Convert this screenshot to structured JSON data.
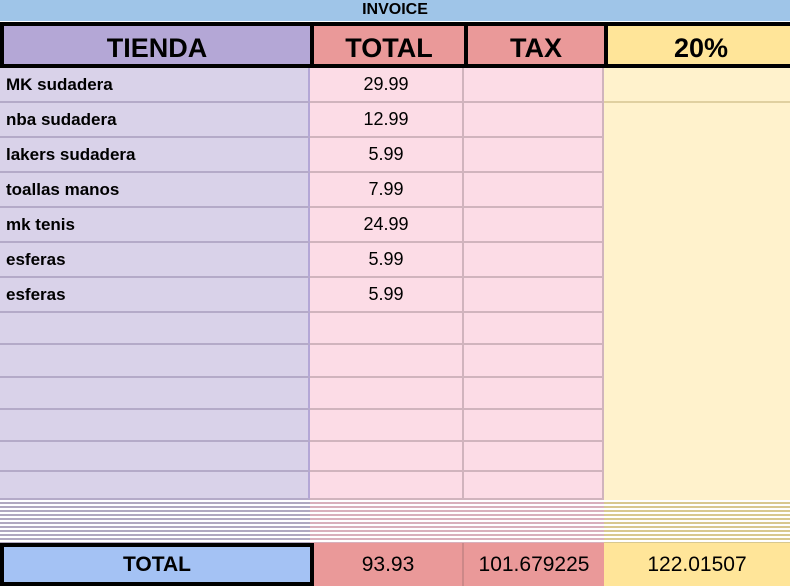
{
  "title": "INVOICE",
  "headers": [
    "TIENDA",
    "TOTAL",
    "TAX",
    "20%"
  ],
  "rows": [
    {
      "item": "MK sudadera",
      "total": "29.99"
    },
    {
      "item": "nba sudadera",
      "total": "12.99"
    },
    {
      "item": "lakers sudadera",
      "total": "5.99"
    },
    {
      "item": "toallas manos",
      "total": "7.99"
    },
    {
      "item": "mk tenis",
      "total": "24.99"
    },
    {
      "item": "esferas",
      "total": "5.99"
    },
    {
      "item": "esferas",
      "total": "5.99"
    },
    {
      "item": "",
      "total": ""
    },
    {
      "item": "",
      "total": ""
    },
    {
      "item": "",
      "total": ""
    },
    {
      "item": "",
      "total": ""
    },
    {
      "item": "",
      "total": ""
    },
    {
      "item": "",
      "total": ""
    }
  ],
  "totals": {
    "label": "TOTAL",
    "total": "93.93",
    "tax": "101.679225",
    "pct": "122.01507"
  },
  "colors": {
    "tienda": "#b4a7d6",
    "total": "#ea9999",
    "pct": "#ffe599",
    "title": "#9fc5e8",
    "total_label": "#a4c2f4"
  }
}
